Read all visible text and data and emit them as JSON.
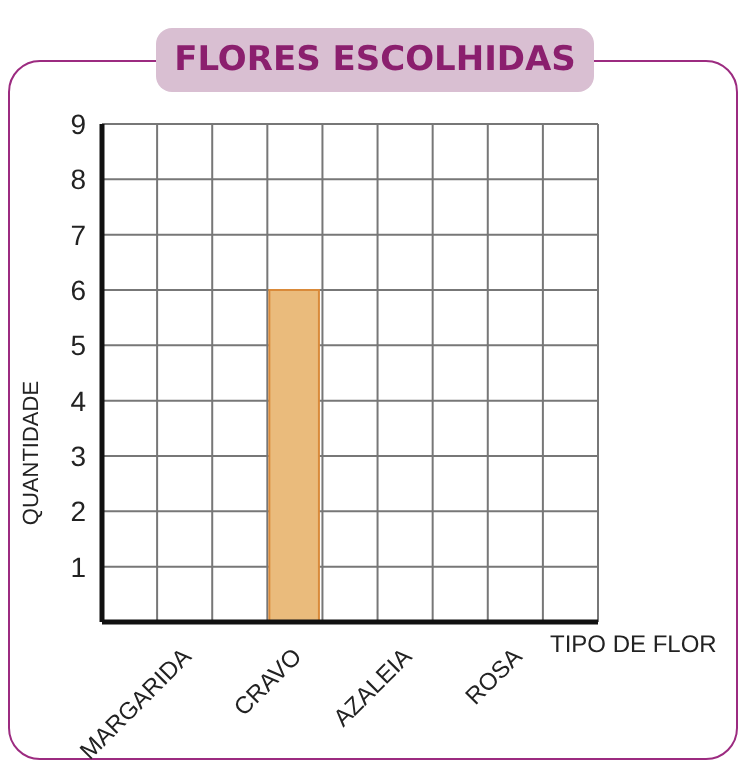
{
  "chart_data": {
    "type": "bar",
    "title": "FLORES ESCOLHIDAS",
    "xlabel": "TIPO DE FLOR",
    "ylabel": "QUANTIDADE",
    "categories": [
      null,
      "MARGARIDA",
      null,
      "CRAVO",
      null,
      "AZALEIA",
      null,
      "ROSA",
      null
    ],
    "values": [
      null,
      0,
      null,
      6,
      null,
      0,
      null,
      0,
      null
    ],
    "color": "#eabb7c",
    "ylim": [
      0,
      9
    ],
    "yticks": [
      1,
      2,
      3,
      4,
      5,
      6,
      7,
      8,
      9
    ],
    "grid": true
  }
}
